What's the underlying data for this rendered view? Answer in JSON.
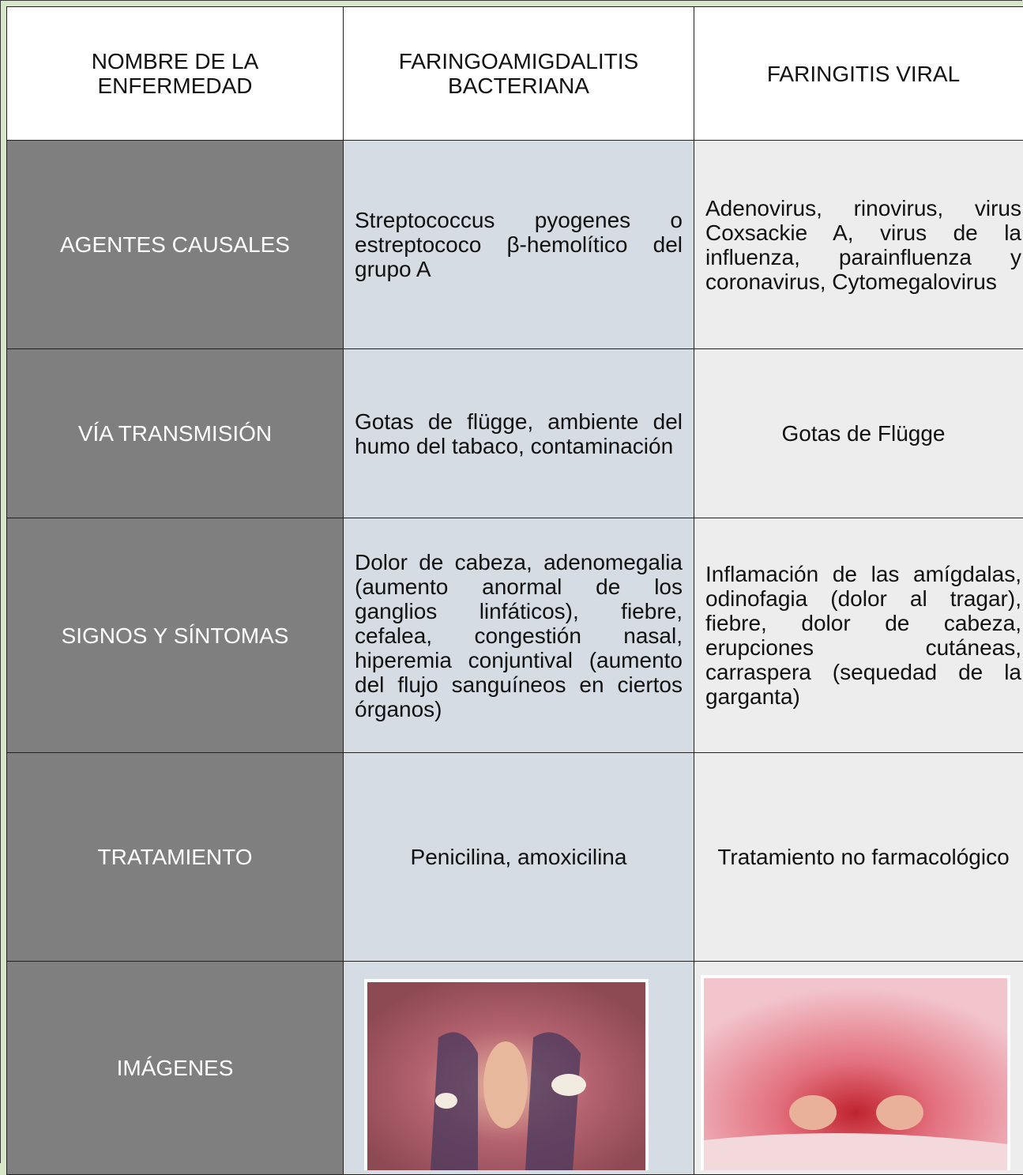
{
  "table": {
    "header": [
      "NOMBRE DE LA ENFERMEDAD",
      "FARINGOAMIGDALITIS BACTERIANA",
      "FARINGITIS VIRAL"
    ],
    "rows": [
      [
        "AGENTES CAUSALES",
        "Streptococcus pyogenes o estreptococo β-hemolítico del grupo A",
        "Adenovirus, rinovirus, virus Coxsackie A, virus de la influenza, parainfluenza y coronavirus, Cytomegalovirus"
      ],
      [
        "VÍA TRANSMISIÓN",
        "Gotas de flügge, ambiente del humo del tabaco, contaminación",
        "Gotas de Flügge"
      ],
      [
        "SIGNOS Y SÍNTOMAS",
        "Dolor de cabeza, adenomegalia (aumento anormal de los ganglios linfáticos), fiebre, cefalea, congestión nasal, hiperemia conjuntival (aumento del flujo sanguíneos en ciertos órganos)",
        "Inflamación de las amígdalas, odinofagia (dolor al tragar), fiebre, dolor de cabeza, erupciones cutáneas, carraspera (sequedad de la garganta)"
      ],
      [
        "TRATAMIENTO",
        "Penicilina, amoxicilina",
        "Tratamiento no farmacológico"
      ],
      [
        "IMÁGENES"
      ]
    ]
  }
}
